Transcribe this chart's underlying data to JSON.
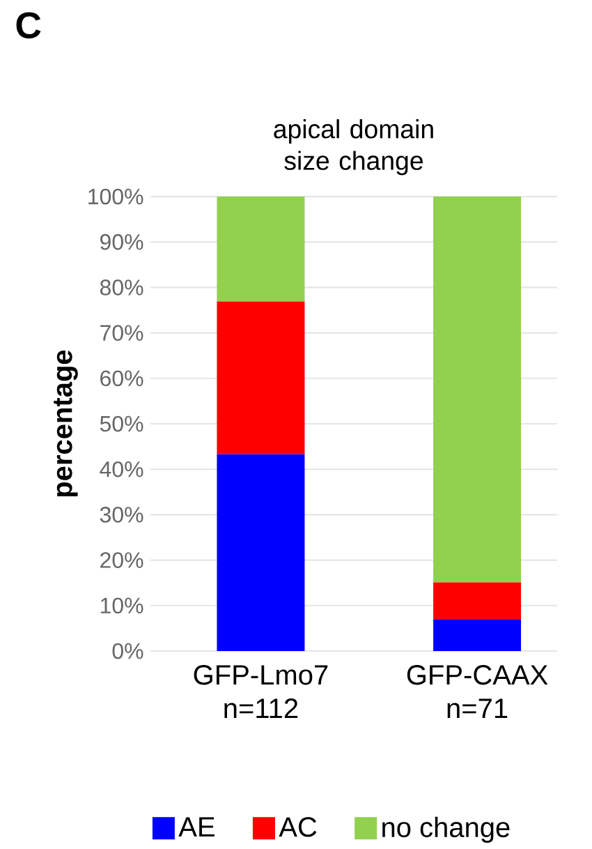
{
  "chart_data": {
    "type": "bar",
    "stacked": true,
    "title": "apical domain size change",
    "ylabel": "percentage",
    "categories": [
      "GFP-Lmo7 n=112",
      "GFP-CAAX n=71"
    ],
    "series": [
      {
        "name": "AE",
        "color": "#0000ff",
        "values": [
          43.3,
          6.9
        ]
      },
      {
        "name": "AC",
        "color": "#ff0000",
        "values": [
          33.6,
          8.2
        ]
      },
      {
        "name": "no change",
        "color": "#92d050",
        "values": [
          23.1,
          84.9
        ]
      }
    ],
    "ylim": [
      0,
      100
    ],
    "yticks": [
      {
        "value": 0,
        "label": "0%"
      },
      {
        "value": 10,
        "label": "10%"
      },
      {
        "value": 20,
        "label": "20%"
      },
      {
        "value": 30,
        "label": "30%"
      },
      {
        "value": 40,
        "label": "40%"
      },
      {
        "value": 50,
        "label": "50%"
      },
      {
        "value": 60,
        "label": "60%"
      },
      {
        "value": 70,
        "label": "70%"
      },
      {
        "value": 80,
        "label": "80%"
      },
      {
        "value": 90,
        "label": "90%"
      },
      {
        "value": 100,
        "label": "100%"
      }
    ],
    "grid": "y",
    "legend": "bottom",
    "annotations": [
      "C"
    ]
  }
}
